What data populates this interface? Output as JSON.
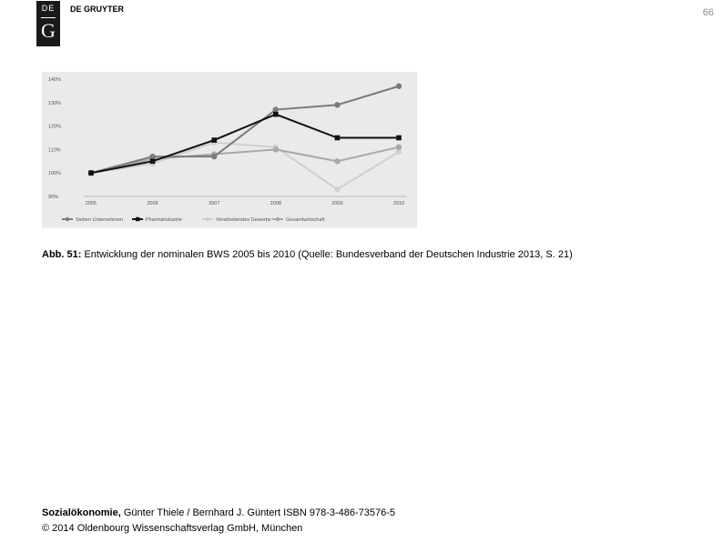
{
  "header": {
    "logo_top": "DE",
    "logo_bottom": "G",
    "brand": "DE GRUYTER",
    "page_number": "66"
  },
  "chart_data": {
    "type": "line",
    "x": [
      "2005",
      "2006",
      "2007",
      "2008",
      "2009",
      "2010"
    ],
    "y_ticks": [
      "90%",
      "100%",
      "110%",
      "120%",
      "130%",
      "140%"
    ],
    "ylim": [
      90,
      140
    ],
    "series": [
      {
        "name": "Sieben Unternehmen",
        "color": "#7a7a7a",
        "marker": "circle",
        "values": [
          100,
          107,
          107,
          127,
          129,
          137
        ]
      },
      {
        "name": "Pharmaindustrie",
        "color": "#111111",
        "marker": "square",
        "values": [
          100,
          105,
          114,
          125,
          115,
          115
        ]
      },
      {
        "name": "Verarbeitendes Gewerbe",
        "color": "#cfcfcf",
        "marker": "circle",
        "values": [
          100,
          104,
          113,
          111,
          93,
          109
        ]
      },
      {
        "name": "Gesamtwirtschaft",
        "color": "#a8a8a8",
        "marker": "circle",
        "values": [
          100,
          106,
          108,
          110,
          105,
          111
        ]
      }
    ]
  },
  "caption": {
    "label": "Abb. 51:",
    "text": "Entwicklung der nominalen BWS 2005 bis 2010 (Quelle: Bundesverband der Deutschen Industrie 2013, S. 21)"
  },
  "footer": {
    "book_title": "Sozialökonomie,",
    "book_info": "Günter Thiele / Bernhard J. Güntert ISBN 978-3-486-73576-5",
    "copyright": "© 2014 Oldenbourg Wissenschaftsverlag GmbH, München"
  }
}
